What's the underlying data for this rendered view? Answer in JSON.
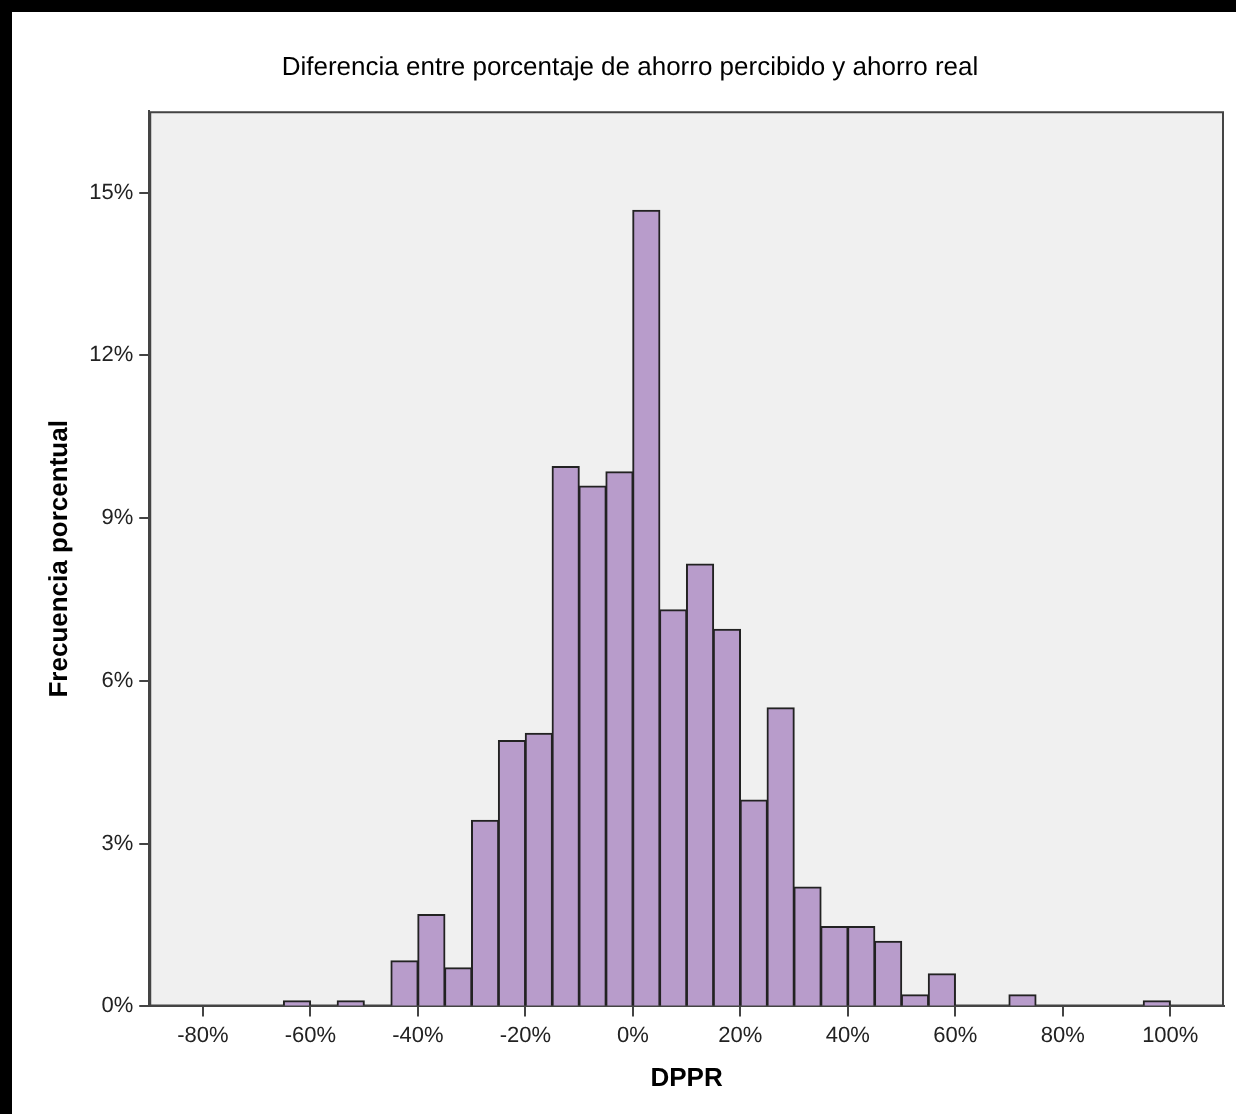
{
  "chart_data": {
    "type": "histogram",
    "title": "Diferencia entre porcentaje de ahorro percibido y ahorro real",
    "xlabel": "DPPR",
    "ylabel": "Frecuencia porcentual",
    "bins": [
      -65,
      -60,
      -55,
      -50,
      -45,
      -40,
      -35,
      -30,
      -25,
      -20,
      -15,
      -10,
      -5,
      0,
      5,
      10,
      15,
      20,
      25,
      30,
      35,
      40,
      45,
      50,
      55,
      60,
      65,
      70,
      75,
      80,
      85,
      90,
      95,
      100
    ],
    "values": [
      0.1,
      0,
      0.1,
      0,
      0.84,
      1.69,
      0.71,
      3.43,
      4.9,
      5.03,
      9.95,
      9.59,
      9.85,
      14.67,
      7.31,
      8.15,
      6.95,
      3.8,
      5.5,
      2.2,
      1.47,
      1.47,
      1.2,
      0.21,
      0.6,
      0,
      0,
      0.21,
      0,
      0,
      0,
      0,
      0.1
    ],
    "color": "#b89ccb",
    "xlim": [
      -90,
      110
    ],
    "xticks": [
      {
        "value": -80,
        "label": "-80%"
      },
      {
        "value": -60,
        "label": "-60%"
      },
      {
        "value": -40,
        "label": "-40%"
      },
      {
        "value": -20,
        "label": "-20%"
      },
      {
        "value": 0,
        "label": "0%"
      },
      {
        "value": 20,
        "label": "20%"
      },
      {
        "value": 40,
        "label": "40%"
      },
      {
        "value": 60,
        "label": "60%"
      },
      {
        "value": 80,
        "label": "80%"
      },
      {
        "value": 100,
        "label": "100%"
      }
    ],
    "ylim": [
      0,
      16.5
    ],
    "yticks": [
      {
        "value": 0,
        "label": "0%"
      },
      {
        "value": 3,
        "label": "3%"
      },
      {
        "value": 6,
        "label": "6%"
      },
      {
        "value": 9,
        "label": "9%"
      },
      {
        "value": 12,
        "label": "12%"
      },
      {
        "value": 15,
        "label": "15%"
      }
    ],
    "grid": false,
    "legend": false
  }
}
